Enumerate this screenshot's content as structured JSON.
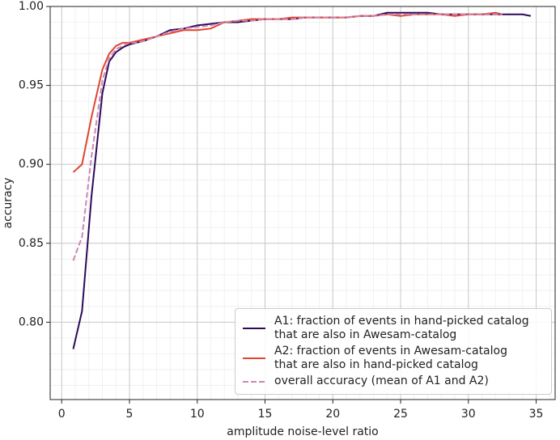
{
  "chart_data": {
    "type": "line",
    "xlabel": "amplitude noise-level ratio",
    "ylabel": "accuracy",
    "x": [
      0.85,
      1.5,
      2.2,
      3,
      3.5,
      4,
      4.5,
      5,
      5.5,
      6,
      7,
      8,
      9,
      10,
      11,
      12,
      13,
      14,
      15,
      16,
      17,
      18,
      19,
      20,
      21,
      22,
      23,
      24,
      25,
      26,
      27,
      28,
      29,
      30,
      31,
      32,
      32.5,
      33,
      34,
      34.6
    ],
    "series": [
      {
        "name": "A1: fraction of events in hand-picked catalog\nthat are also in Awesam-catalog",
        "color": "#2d0a5a",
        "style": "solid",
        "values": [
          0.783,
          0.807,
          0.88,
          0.945,
          0.965,
          0.971,
          0.974,
          0.976,
          0.977,
          0.978,
          0.981,
          0.985,
          0.986,
          0.988,
          0.989,
          0.99,
          0.99,
          0.991,
          0.992,
          0.992,
          0.992,
          0.993,
          0.993,
          0.993,
          0.993,
          0.994,
          0.994,
          0.996,
          0.996,
          0.996,
          0.996,
          0.995,
          0.995,
          0.995,
          0.995,
          0.995,
          0.995,
          0.995,
          0.995,
          0.994
        ]
      },
      {
        "name": "A2: fraction of events in Awesam-catalog\nthat are also in hand-picked catalog",
        "color": "#e0452f",
        "style": "solid",
        "values": [
          0.895,
          0.9,
          0.93,
          0.96,
          0.97,
          0.975,
          0.977,
          0.977,
          0.978,
          0.979,
          0.981,
          0.983,
          0.985,
          0.985,
          0.986,
          0.99,
          0.991,
          0.992,
          0.992,
          0.992,
          0.993,
          0.993,
          0.993,
          0.993,
          0.993,
          0.994,
          0.994,
          0.995,
          0.994,
          0.995,
          0.995,
          0.995,
          0.994,
          0.995,
          0.995,
          0.996,
          0.995,
          null,
          null,
          null
        ]
      },
      {
        "name": "overall accuracy (mean of A1 and A2)",
        "color": "#cc88b4",
        "style": "dashed",
        "values": [
          0.839,
          0.854,
          0.905,
          0.953,
          0.967,
          0.973,
          0.975,
          0.977,
          0.977,
          0.978,
          0.981,
          0.984,
          0.986,
          0.987,
          0.988,
          0.99,
          0.991,
          0.991,
          0.992,
          0.992,
          0.992,
          0.993,
          0.993,
          0.993,
          0.993,
          0.994,
          0.994,
          0.995,
          0.995,
          0.995,
          0.995,
          0.995,
          0.995,
          0.995,
          0.995,
          0.995,
          0.995,
          null,
          null,
          null
        ]
      }
    ],
    "xlim": [
      -0.85,
      36.4
    ],
    "xticks": [
      0,
      5,
      10,
      15,
      20,
      25,
      30,
      35
    ],
    "ylim": [
      0.751,
      1.0
    ],
    "yticks": [
      {
        "value": 0.8,
        "label": "0.80"
      },
      0.85,
      {
        "value": 0.9,
        "label": "0.90"
      },
      0.95,
      {
        "value": 1.0,
        "label": "1.00"
      }
    ],
    "grid": true,
    "minor_grid": true,
    "legend": "lower right"
  }
}
